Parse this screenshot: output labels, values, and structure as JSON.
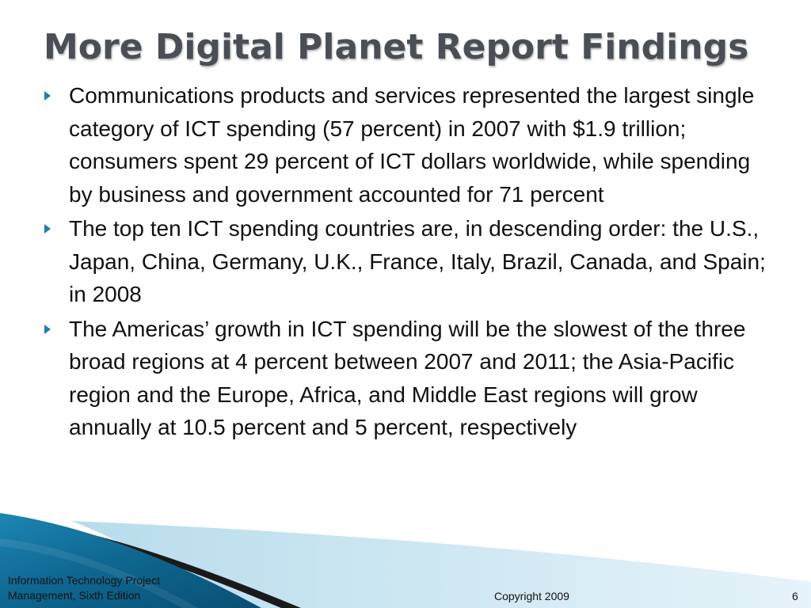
{
  "slide": {
    "title": "More Digital Planet Report Findings",
    "bullets": [
      "Communications products and services represented the largest single category of ICT spending (57 percent) in 2007 with $1.9 trillion; consumers spent 29 percent of ICT dollars worldwide, while spending by business and government accounted for 71 percent",
      "The top ten ICT spending countries are, in descending order: the U.S., Japan, China, Germany, U.K., France, Italy, Brazil, Canada, and Spain; in 2008",
      "The Americas’ growth in ICT spending will be the slowest of the three broad regions at 4 percent between 2007 and 2011; the Asia-Pacific region and the Europe, Africa, and Middle East regions will grow annually at 10.5 percent and 5 percent, respectively"
    ],
    "bullet_icon": "triangle-bullet-icon"
  },
  "footer": {
    "source_line1": "Information Technology Project",
    "source_line2": "Management, Sixth Edition",
    "copyright": "Copyright 2009",
    "page_number": "6"
  },
  "colors": {
    "title": "#4a4f56",
    "bullet": "#1e7fb0",
    "accent_dark": "#0f5f86",
    "accent_light": "#cfe7f2"
  }
}
